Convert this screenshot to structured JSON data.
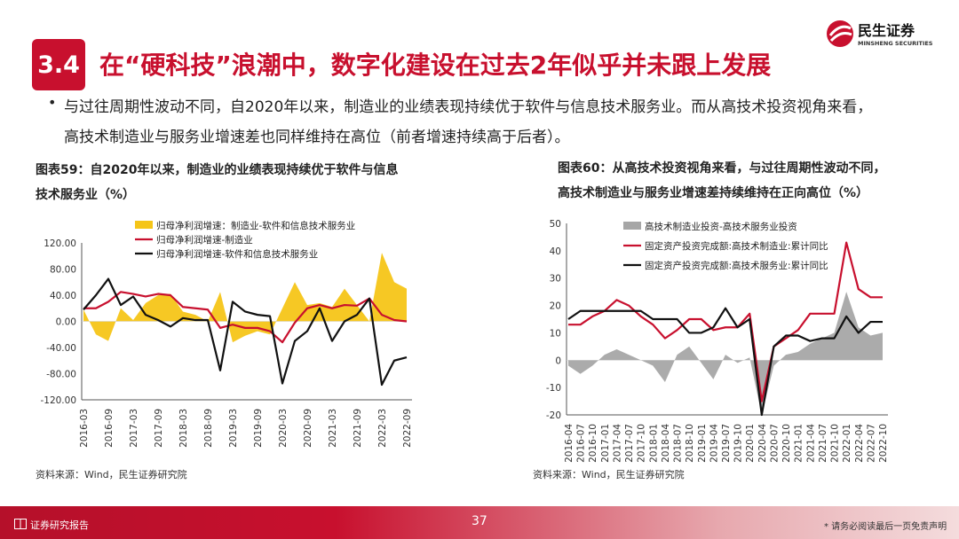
{
  "header": {
    "section_number": "3.4",
    "title": "在“硬科技”浪潮中，数字化建设在过去2年似乎并未跟上发展",
    "logo_text": "民生证券",
    "logo_subtext": "MINSHENG SECURITIES"
  },
  "bullet": {
    "line1": "与过往周期性波动不同，自2020年以来，制造业的业绩表现持续优于软件与信息技术服务业。而从高技术投资视角来看，",
    "line2": "高技术制造业与服务业增速差也同样维持在高位（前者增速持续高于后者）。"
  },
  "left_chart_title_1": "图表59：自2020年以来，制造业的业绩表现持续优于软件与信息",
  "left_chart_title_2": "技术服务业（%）",
  "right_chart_title_1": "图表60：从高技术投资视角来看，与过往周期性波动不同，",
  "right_chart_title_2": "高技术制造业与服务业增速差持续维持在正向高位（%）",
  "source_left": "资料来源：Wind，民生证券研究院",
  "source_right": "资料来源：Wind，民生证券研究院",
  "footer": {
    "label": "证券研究报告",
    "page": "37",
    "disclaimer": "* 请务必阅读最后一页免责声明"
  },
  "chart_data": [
    {
      "type": "bar",
      "ylim": [
        -120,
        120
      ],
      "yticks": [
        "120.00",
        "80.00",
        "40.00",
        "0.00",
        "-40.00",
        "-80.00",
        "-120.00"
      ],
      "ytick_values": [
        120,
        80,
        40,
        0,
        -40,
        -80,
        -120
      ],
      "xtick_labels": [
        "2016-03",
        "2016-09",
        "2017-03",
        "2017-09",
        "2018-03",
        "2018-09",
        "2019-03",
        "2019-09",
        "2020-03",
        "2020-09",
        "2021-03",
        "2021-09",
        "2022-03",
        "2022-09"
      ],
      "x": [
        "2016-03",
        "2016-06",
        "2016-09",
        "2016-12",
        "2017-03",
        "2017-06",
        "2017-09",
        "2017-12",
        "2018-03",
        "2018-06",
        "2018-09",
        "2018-12",
        "2019-03",
        "2019-06",
        "2019-09",
        "2019-12",
        "2020-03",
        "2020-06",
        "2020-09",
        "2020-12",
        "2021-03",
        "2021-06",
        "2021-09",
        "2021-12",
        "2022-03",
        "2022-06",
        "2022-09"
      ],
      "legend": "top",
      "grid": false,
      "series": [
        {
          "name": "归母净利润增速：制造业-软件和信息技术服务业",
          "kind": "area",
          "color": "#f5c518",
          "values": [
            18,
            -20,
            -30,
            20,
            2,
            28,
            40,
            42,
            15,
            10,
            0,
            45,
            -32,
            -22,
            -15,
            -20,
            20,
            60,
            25,
            28,
            22,
            50,
            25,
            0,
            105,
            60,
            50
          ]
        },
        {
          "name": "归母净利润增速-制造业",
          "kind": "line",
          "color": "#c8102e",
          "values": [
            20,
            20,
            30,
            45,
            42,
            38,
            42,
            40,
            22,
            20,
            18,
            -10,
            -5,
            -10,
            -10,
            -15,
            -32,
            -2,
            20,
            25,
            20,
            25,
            24,
            35,
            10,
            2,
            0
          ]
        },
        {
          "name": "归母净利润增速-软件和信息技术服务业",
          "kind": "line",
          "color": "#111111",
          "values": [
            18,
            40,
            65,
            25,
            38,
            10,
            2,
            -8,
            5,
            2,
            2,
            -75,
            30,
            15,
            10,
            8,
            -95,
            -30,
            -15,
            20,
            -30,
            0,
            10,
            35,
            -97,
            -60,
            -55
          ]
        }
      ]
    },
    {
      "type": "line",
      "ylim": [
        -20,
        50
      ],
      "yticks": [
        "50",
        "40",
        "30",
        "20",
        "10",
        "0",
        "-10",
        "-20"
      ],
      "ytick_values": [
        50,
        40,
        30,
        20,
        10,
        0,
        -10,
        -20
      ],
      "xtick_labels": [
        "2016-04",
        "2016-07",
        "2016-10",
        "2017-01",
        "2017-04",
        "2017-07",
        "2017-10",
        "2018-01",
        "2018-04",
        "2018-07",
        "2018-10",
        "2019-01",
        "2019-04",
        "2019-07",
        "2019-10",
        "2020-01",
        "2020-04",
        "2020-07",
        "2020-10",
        "2021-01",
        "2021-04",
        "2021-07",
        "2021-10",
        "2022-01",
        "2022-04",
        "2022-07",
        "2022-10"
      ],
      "legend": "top",
      "grid": false,
      "series": [
        {
          "name": "高技术制造业投资-高技术服务业投资",
          "kind": "area",
          "color": "#a6a6a6",
          "values": [
            -2,
            -5,
            -2,
            2,
            4,
            2,
            0,
            -2,
            -8,
            2,
            5,
            -1,
            -7,
            2,
            -1,
            1,
            -20,
            -2,
            2,
            3,
            6,
            8,
            10,
            25,
            12,
            9,
            10
          ]
        },
        {
          "name": "固定资产投资完成额:高技术制造业:累计同比",
          "kind": "line",
          "color": "#c8102e",
          "values": [
            13,
            13,
            16,
            18,
            22,
            20,
            16,
            13,
            8,
            11,
            15,
            15,
            11,
            12,
            12,
            17,
            -15,
            5,
            8,
            11,
            17,
            17,
            17,
            43,
            26,
            23,
            23
          ]
        },
        {
          "name": "固定资产投资完成额:高技术服务业:累计同比",
          "kind": "line",
          "color": "#111111",
          "values": [
            15,
            18,
            18,
            18,
            18,
            18,
            18,
            15,
            15,
            15,
            10,
            10,
            12,
            19,
            12,
            15,
            -20,
            5,
            9,
            9,
            7,
            8,
            8,
            16,
            10,
            14,
            14
          ]
        }
      ]
    }
  ]
}
